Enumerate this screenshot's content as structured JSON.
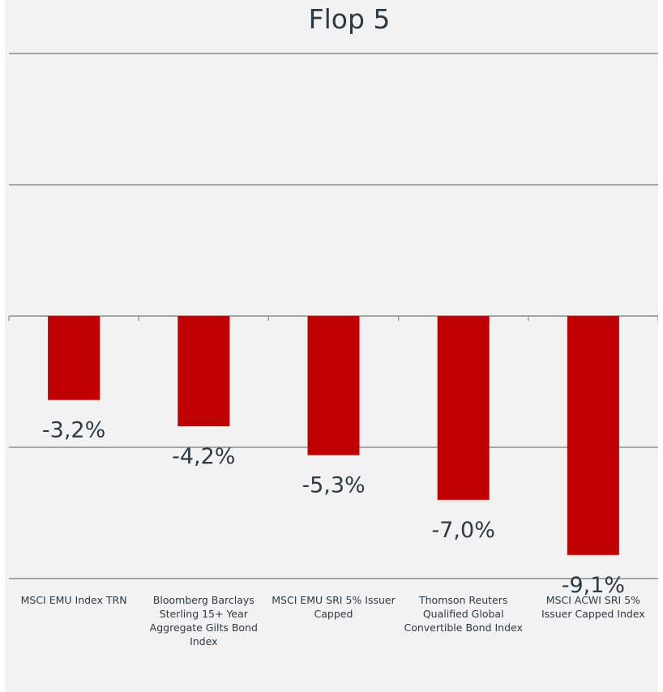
{
  "chart_data": {
    "type": "bar",
    "title": "Flop 5",
    "xlabel": "",
    "ylabel": "",
    "categories": [
      "MSCI EMU Index TRN",
      "Bloomberg Barclays Sterling 15+ Year Aggregate Gilts Bond Index",
      "MSCI EMU SRI 5% Issuer Capped",
      "Thomson Reuters Qualified Global Convertible Bond Index",
      "MSCI ACWI SRI 5% Issuer Capped Index"
    ],
    "values": [
      -3.2,
      -4.2,
      -5.3,
      -7.0,
      -9.1
    ],
    "value_labels": [
      "-3,2%",
      "-4,2%",
      "-5,3%",
      "-7,0%",
      "-9,1%"
    ],
    "ylim": [
      -10,
      10
    ],
    "gridlines": [
      10,
      5,
      0,
      -5,
      -10
    ],
    "grid": true,
    "legend": "none",
    "bar_color": "#c00000"
  },
  "category_lines": [
    [
      "MSCI EMU Index TRN"
    ],
    [
      "Bloomberg Barclays",
      "Sterling 15+ Year",
      "Aggregate Gilts Bond",
      "Index"
    ],
    [
      "MSCI EMU SRI 5% Issuer",
      "Capped"
    ],
    [
      "Thomson Reuters",
      "Qualified Global",
      "Convertible Bond Index"
    ],
    [
      "MSCI ACWI SRI 5%",
      "Issuer Capped Index"
    ]
  ]
}
